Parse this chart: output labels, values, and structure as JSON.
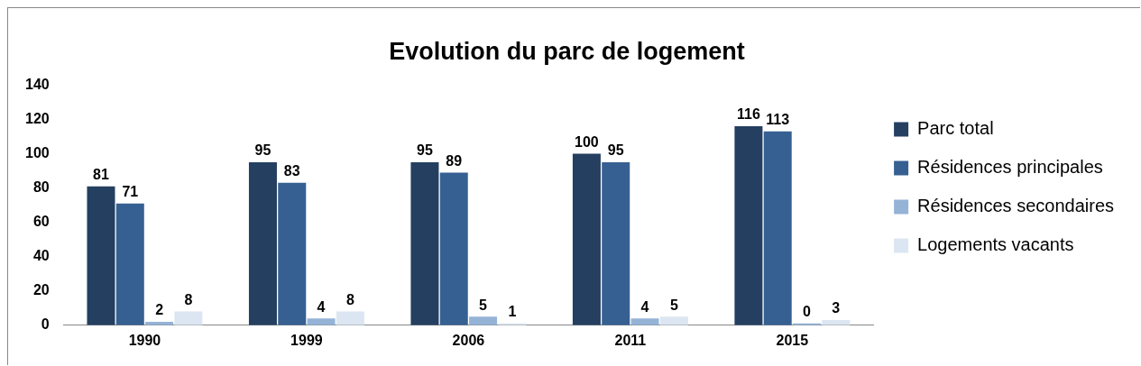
{
  "chart_data": {
    "type": "bar",
    "title": "Evolution du parc de logement",
    "categories": [
      "1990",
      "1999",
      "2006",
      "2011",
      "2015"
    ],
    "series": [
      {
        "name": "Parc total",
        "color": "#243f60",
        "values": [
          81,
          95,
          95,
          100,
          116
        ]
      },
      {
        "name": "Résidences principales",
        "color": "#366092",
        "values": [
          71,
          83,
          89,
          95,
          113
        ]
      },
      {
        "name": "Résidences secondaires",
        "color": "#95b3d7",
        "values": [
          2,
          4,
          5,
          4,
          0
        ]
      },
      {
        "name": "Logements vacants",
        "color": "#dce6f2",
        "values": [
          8,
          8,
          1,
          5,
          3
        ]
      }
    ],
    "ylim": [
      0,
      140
    ],
    "yticks": [
      0,
      20,
      40,
      60,
      80,
      100,
      120,
      140
    ],
    "grid": false,
    "legend": "right",
    "data_labels": true
  }
}
